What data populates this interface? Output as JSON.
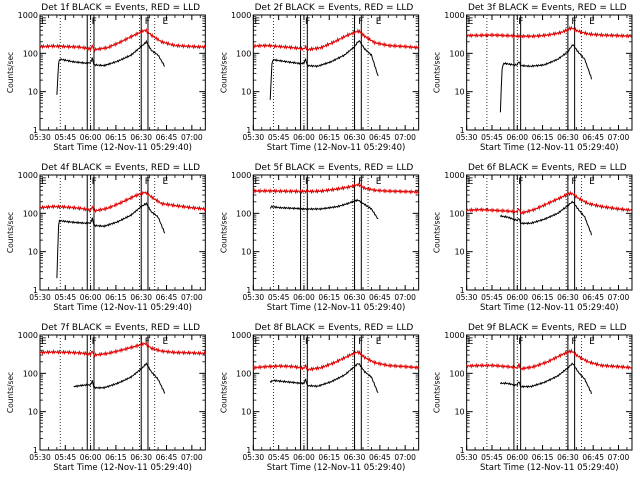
{
  "chart_data": {
    "type": "line",
    "layout": "3x3 grid",
    "ylabel": "Counts/sec",
    "xlabel": "Start Time (12-Nov-11 05:29:40)",
    "xticks": [
      "05:30",
      "05:45",
      "06:00",
      "06:15",
      "06:30",
      "06:45",
      "07:00"
    ],
    "xlim_minutes_after_0530": [
      0,
      98
    ],
    "yscale": "log",
    "ylim": [
      1,
      1000
    ],
    "yticks": [
      "1",
      "10",
      "100",
      "1000"
    ],
    "series_names": [
      "Events (black)",
      "LLD (red)"
    ],
    "colors": {
      "events": "#000000",
      "lld": "#e00000"
    },
    "panels": [
      {
        "title": "Det 1f BLACK = Events, RED = LLD",
        "markers": [
          {
            "label": "E",
            "x": 0
          },
          {
            "label": "F",
            "x": 30
          },
          {
            "label": "F",
            "x": 61.5
          },
          {
            "label": "E",
            "x": 72
          }
        ],
        "bands": [
          [
            28,
            32
          ],
          [
            60,
            64
          ]
        ],
        "dotted": [
          12,
          30,
          59,
          68
        ],
        "series": [
          {
            "name": "Events",
            "x": [
              10,
              11,
              11.5,
              12,
              20,
              28,
              30,
              31,
              32,
              38,
              46,
              54,
              60,
              62,
              63,
              66,
              70,
              74
            ],
            "y": [
              8,
              55,
              65,
              70,
              60,
              55,
              58,
              75,
              50,
              48,
              62,
              90,
              150,
              180,
              200,
              120,
              90,
              45
            ]
          },
          {
            "name": "LLD",
            "x": [
              0,
              8,
              16,
              24,
              30,
              31,
              32,
              40,
              48,
              56,
              60,
              62,
              63,
              66,
              72,
              80,
              90,
              98
            ],
            "y": [
              150,
              155,
              150,
              145,
              130,
              160,
              125,
              140,
              200,
              300,
              360,
              400,
              390,
              300,
              200,
              160,
              150,
              145
            ]
          }
        ]
      },
      {
        "title": "Det 2f BLACK = Events, RED = LLD",
        "markers": [
          {
            "label": "E",
            "x": 0
          },
          {
            "label": "F",
            "x": 30
          },
          {
            "label": "F",
            "x": 61.5
          },
          {
            "label": "E",
            "x": 72
          }
        ],
        "bands": [
          [
            28,
            32
          ],
          [
            60,
            64
          ]
        ],
        "dotted": [
          12,
          30,
          59,
          68
        ],
        "series": [
          {
            "name": "Events",
            "x": [
              10,
              11,
              11.5,
              12,
              20,
              28,
              30,
              31,
              32,
              38,
              46,
              54,
              60,
              62,
              63,
              66,
              70,
              74
            ],
            "y": [
              6,
              50,
              65,
              68,
              60,
              54,
              56,
              70,
              48,
              46,
              60,
              90,
              150,
              200,
              210,
              130,
              90,
              25
            ]
          },
          {
            "name": "LLD",
            "x": [
              0,
              8,
              16,
              24,
              30,
              31,
              32,
              40,
              48,
              56,
              60,
              62,
              63,
              66,
              72,
              80,
              90,
              98
            ],
            "y": [
              155,
              160,
              150,
              140,
              130,
              150,
              125,
              140,
              200,
              300,
              350,
              380,
              370,
              280,
              190,
              160,
              150,
              140
            ]
          }
        ]
      },
      {
        "title": "Det 3f BLACK = Events, RED = LLD",
        "markers": [
          {
            "label": "E",
            "x": 0
          },
          {
            "label": "F",
            "x": 30
          },
          {
            "label": "F",
            "x": 61.5
          },
          {
            "label": "E",
            "x": 72
          }
        ],
        "bands": [
          [
            28,
            32
          ],
          [
            60,
            64
          ]
        ],
        "dotted": [
          12,
          30,
          59,
          68
        ],
        "series": [
          {
            "name": "Events",
            "x": [
              20,
              21,
              22,
              28,
              30,
              31,
              32,
              38,
              46,
              54,
              60,
              62,
              63,
              66,
              70,
              74
            ],
            "y": [
              3,
              40,
              55,
              50,
              50,
              62,
              48,
              46,
              50,
              70,
              110,
              150,
              170,
              110,
              70,
              22
            ]
          },
          {
            "name": "LLD",
            "x": [
              0,
              8,
              16,
              24,
              30,
              40,
              48,
              56,
              60,
              62,
              63,
              66,
              72,
              80,
              90,
              98
            ],
            "y": [
              290,
              295,
              300,
              290,
              280,
              280,
              300,
              350,
              420,
              460,
              440,
              380,
              320,
              300,
              290,
              280
            ]
          }
        ]
      },
      {
        "title": "Det 4f BLACK = Events, RED = LLD",
        "markers": [
          {
            "label": "E",
            "x": 0
          },
          {
            "label": "F",
            "x": 30
          },
          {
            "label": "F",
            "x": 61.5
          },
          {
            "label": "E",
            "x": 72
          }
        ],
        "bands": [
          [
            28,
            32
          ],
          [
            60,
            64
          ]
        ],
        "dotted": [
          12,
          30,
          59,
          68
        ],
        "series": [
          {
            "name": "Events",
            "x": [
              10,
              11,
              11.5,
              12,
              20,
              28,
              30,
              31,
              32,
              38,
              46,
              54,
              60,
              62,
              63,
              66,
              70,
              74
            ],
            "y": [
              2,
              50,
              62,
              64,
              58,
              55,
              57,
              75,
              48,
              46,
              60,
              90,
              150,
              170,
              180,
              110,
              80,
              30
            ]
          },
          {
            "name": "LLD",
            "x": [
              0,
              8,
              16,
              24,
              30,
              31,
              32,
              40,
              48,
              56,
              60,
              62,
              63,
              66,
              72,
              80,
              90,
              98
            ],
            "y": [
              140,
              150,
              145,
              135,
              120,
              150,
              115,
              135,
              190,
              280,
              330,
              350,
              340,
              270,
              180,
              160,
              140,
              130
            ]
          }
        ]
      },
      {
        "title": "Det 5f BLACK = Events, RED = LLD",
        "markers": [
          {
            "label": "E",
            "x": 0
          },
          {
            "label": "F",
            "x": 30
          },
          {
            "label": "F",
            "x": 61.5
          },
          {
            "label": "E",
            "x": 72
          }
        ],
        "bands": [
          [
            28,
            32
          ],
          [
            60,
            64
          ]
        ],
        "dotted": [
          12,
          30,
          59,
          68
        ],
        "series": [
          {
            "name": "Events",
            "x": [
              10,
              10.5,
              16,
              24,
              30,
              40,
              50,
              56,
              60,
              62,
              63,
              66,
              70,
              74
            ],
            "y": [
              130,
              150,
              140,
              135,
              130,
              130,
              150,
              180,
              210,
              220,
              210,
              170,
              130,
              70
            ]
          },
          {
            "name": "LLD",
            "x": [
              0,
              8,
              16,
              24,
              30,
              40,
              48,
              56,
              60,
              62,
              63,
              66,
              72,
              80,
              90,
              98
            ],
            "y": [
              380,
              385,
              380,
              375,
              370,
              380,
              420,
              480,
              530,
              560,
              540,
              450,
              400,
              380,
              370,
              360
            ]
          }
        ]
      },
      {
        "title": "Det 6f BLACK = Events, RED = LLD",
        "markers": [
          {
            "label": "E",
            "x": 0
          },
          {
            "label": "F",
            "x": 30
          },
          {
            "label": "F",
            "x": 61.5
          },
          {
            "label": "E",
            "x": 72
          }
        ],
        "bands": [
          [
            28,
            32
          ],
          [
            60,
            64
          ]
        ],
        "dotted": [
          12,
          30,
          59,
          68
        ],
        "series": [
          {
            "name": "Events",
            "x": [
              20,
              24,
              28,
              30,
              31,
              32,
              38,
              46,
              54,
              60,
              62,
              63,
              66,
              70,
              74
            ],
            "y": [
              85,
              80,
              70,
              65,
              75,
              55,
              55,
              70,
              100,
              160,
              190,
              200,
              130,
              80,
              28
            ]
          },
          {
            "name": "LLD",
            "x": [
              0,
              8,
              16,
              24,
              30,
              31,
              32,
              40,
              48,
              56,
              60,
              62,
              63,
              66,
              72,
              80,
              90,
              98
            ],
            "y": [
              120,
              125,
              120,
              115,
              110,
              135,
              100,
              125,
              180,
              260,
              320,
              330,
              320,
              250,
              180,
              150,
              130,
              120
            ]
          }
        ]
      },
      {
        "title": "Det 7f BLACK = Events, RED = LLD",
        "markers": [
          {
            "label": "E",
            "x": 0
          },
          {
            "label": "F",
            "x": 30
          },
          {
            "label": "F",
            "x": 61.5
          },
          {
            "label": "E",
            "x": 72
          }
        ],
        "bands": [
          [
            28,
            32
          ],
          [
            60,
            64
          ]
        ],
        "dotted": [
          12,
          30,
          59,
          68
        ],
        "series": [
          {
            "name": "Events",
            "x": [
              20,
              24,
              28,
              30,
              31,
              32,
              38,
              46,
              54,
              60,
              62,
              63,
              66,
              70,
              74
            ],
            "y": [
              45,
              48,
              50,
              50,
              65,
              42,
              42,
              55,
              80,
              130,
              160,
              180,
              110,
              70,
              30
            ]
          },
          {
            "name": "LLD",
            "x": [
              0,
              8,
              16,
              24,
              30,
              31,
              32,
              40,
              48,
              56,
              60,
              62,
              63,
              66,
              72,
              80,
              90,
              98
            ],
            "y": [
              350,
              360,
              355,
              340,
              320,
              380,
              300,
              330,
              400,
              500,
              560,
              600,
              580,
              450,
              380,
              350,
              340,
              330
            ]
          }
        ]
      },
      {
        "title": "Det 8f BLACK = Events, RED = LLD",
        "markers": [
          {
            "label": "E",
            "x": 0
          },
          {
            "label": "F",
            "x": 30
          },
          {
            "label": "F",
            "x": 61.5
          },
          {
            "label": "E",
            "x": 72
          }
        ],
        "bands": [
          [
            28,
            32
          ],
          [
            60,
            64
          ]
        ],
        "dotted": [
          12,
          30,
          59,
          68
        ],
        "series": [
          {
            "name": "Events",
            "x": [
              10,
              12,
              20,
              28,
              30,
              31,
              32,
              38,
              46,
              54,
              60,
              62,
              63,
              66,
              70,
              74
            ],
            "y": [
              60,
              65,
              60,
              55,
              55,
              70,
              48,
              46,
              60,
              90,
              150,
              180,
              170,
              110,
              80,
              30
            ]
          },
          {
            "name": "LLD",
            "x": [
              0,
              8,
              16,
              24,
              30,
              31,
              32,
              40,
              48,
              56,
              60,
              62,
              63,
              66,
              72,
              80,
              90,
              98
            ],
            "y": [
              140,
              150,
              155,
              150,
              135,
              160,
              125,
              140,
              190,
              280,
              340,
              360,
              340,
              260,
              190,
              160,
              150,
              140
            ]
          }
        ]
      },
      {
        "title": "Det 9f BLACK = Events, RED = LLD",
        "markers": [
          {
            "label": "E",
            "x": 0
          },
          {
            "label": "F",
            "x": 30
          },
          {
            "label": "F",
            "x": 61.5
          },
          {
            "label": "E",
            "x": 72
          }
        ],
        "bands": [
          [
            28,
            32
          ],
          [
            60,
            64
          ]
        ],
        "dotted": [
          12,
          30,
          59,
          68
        ],
        "series": [
          {
            "name": "Events",
            "x": [
              20,
              24,
              28,
              30,
              31,
              32,
              38,
              46,
              54,
              60,
              62,
              63,
              66,
              70,
              74
            ],
            "y": [
              55,
              55,
              50,
              50,
              62,
              45,
              45,
              58,
              85,
              140,
              170,
              180,
              110,
              70,
              30
            ]
          },
          {
            "name": "LLD",
            "x": [
              0,
              8,
              16,
              24,
              30,
              31,
              32,
              40,
              48,
              56,
              60,
              62,
              63,
              66,
              72,
              80,
              90,
              98
            ],
            "y": [
              155,
              160,
              160,
              150,
              140,
              170,
              130,
              150,
              200,
              300,
              360,
              380,
              360,
              280,
              200,
              160,
              150,
              140
            ]
          }
        ]
      }
    ]
  }
}
